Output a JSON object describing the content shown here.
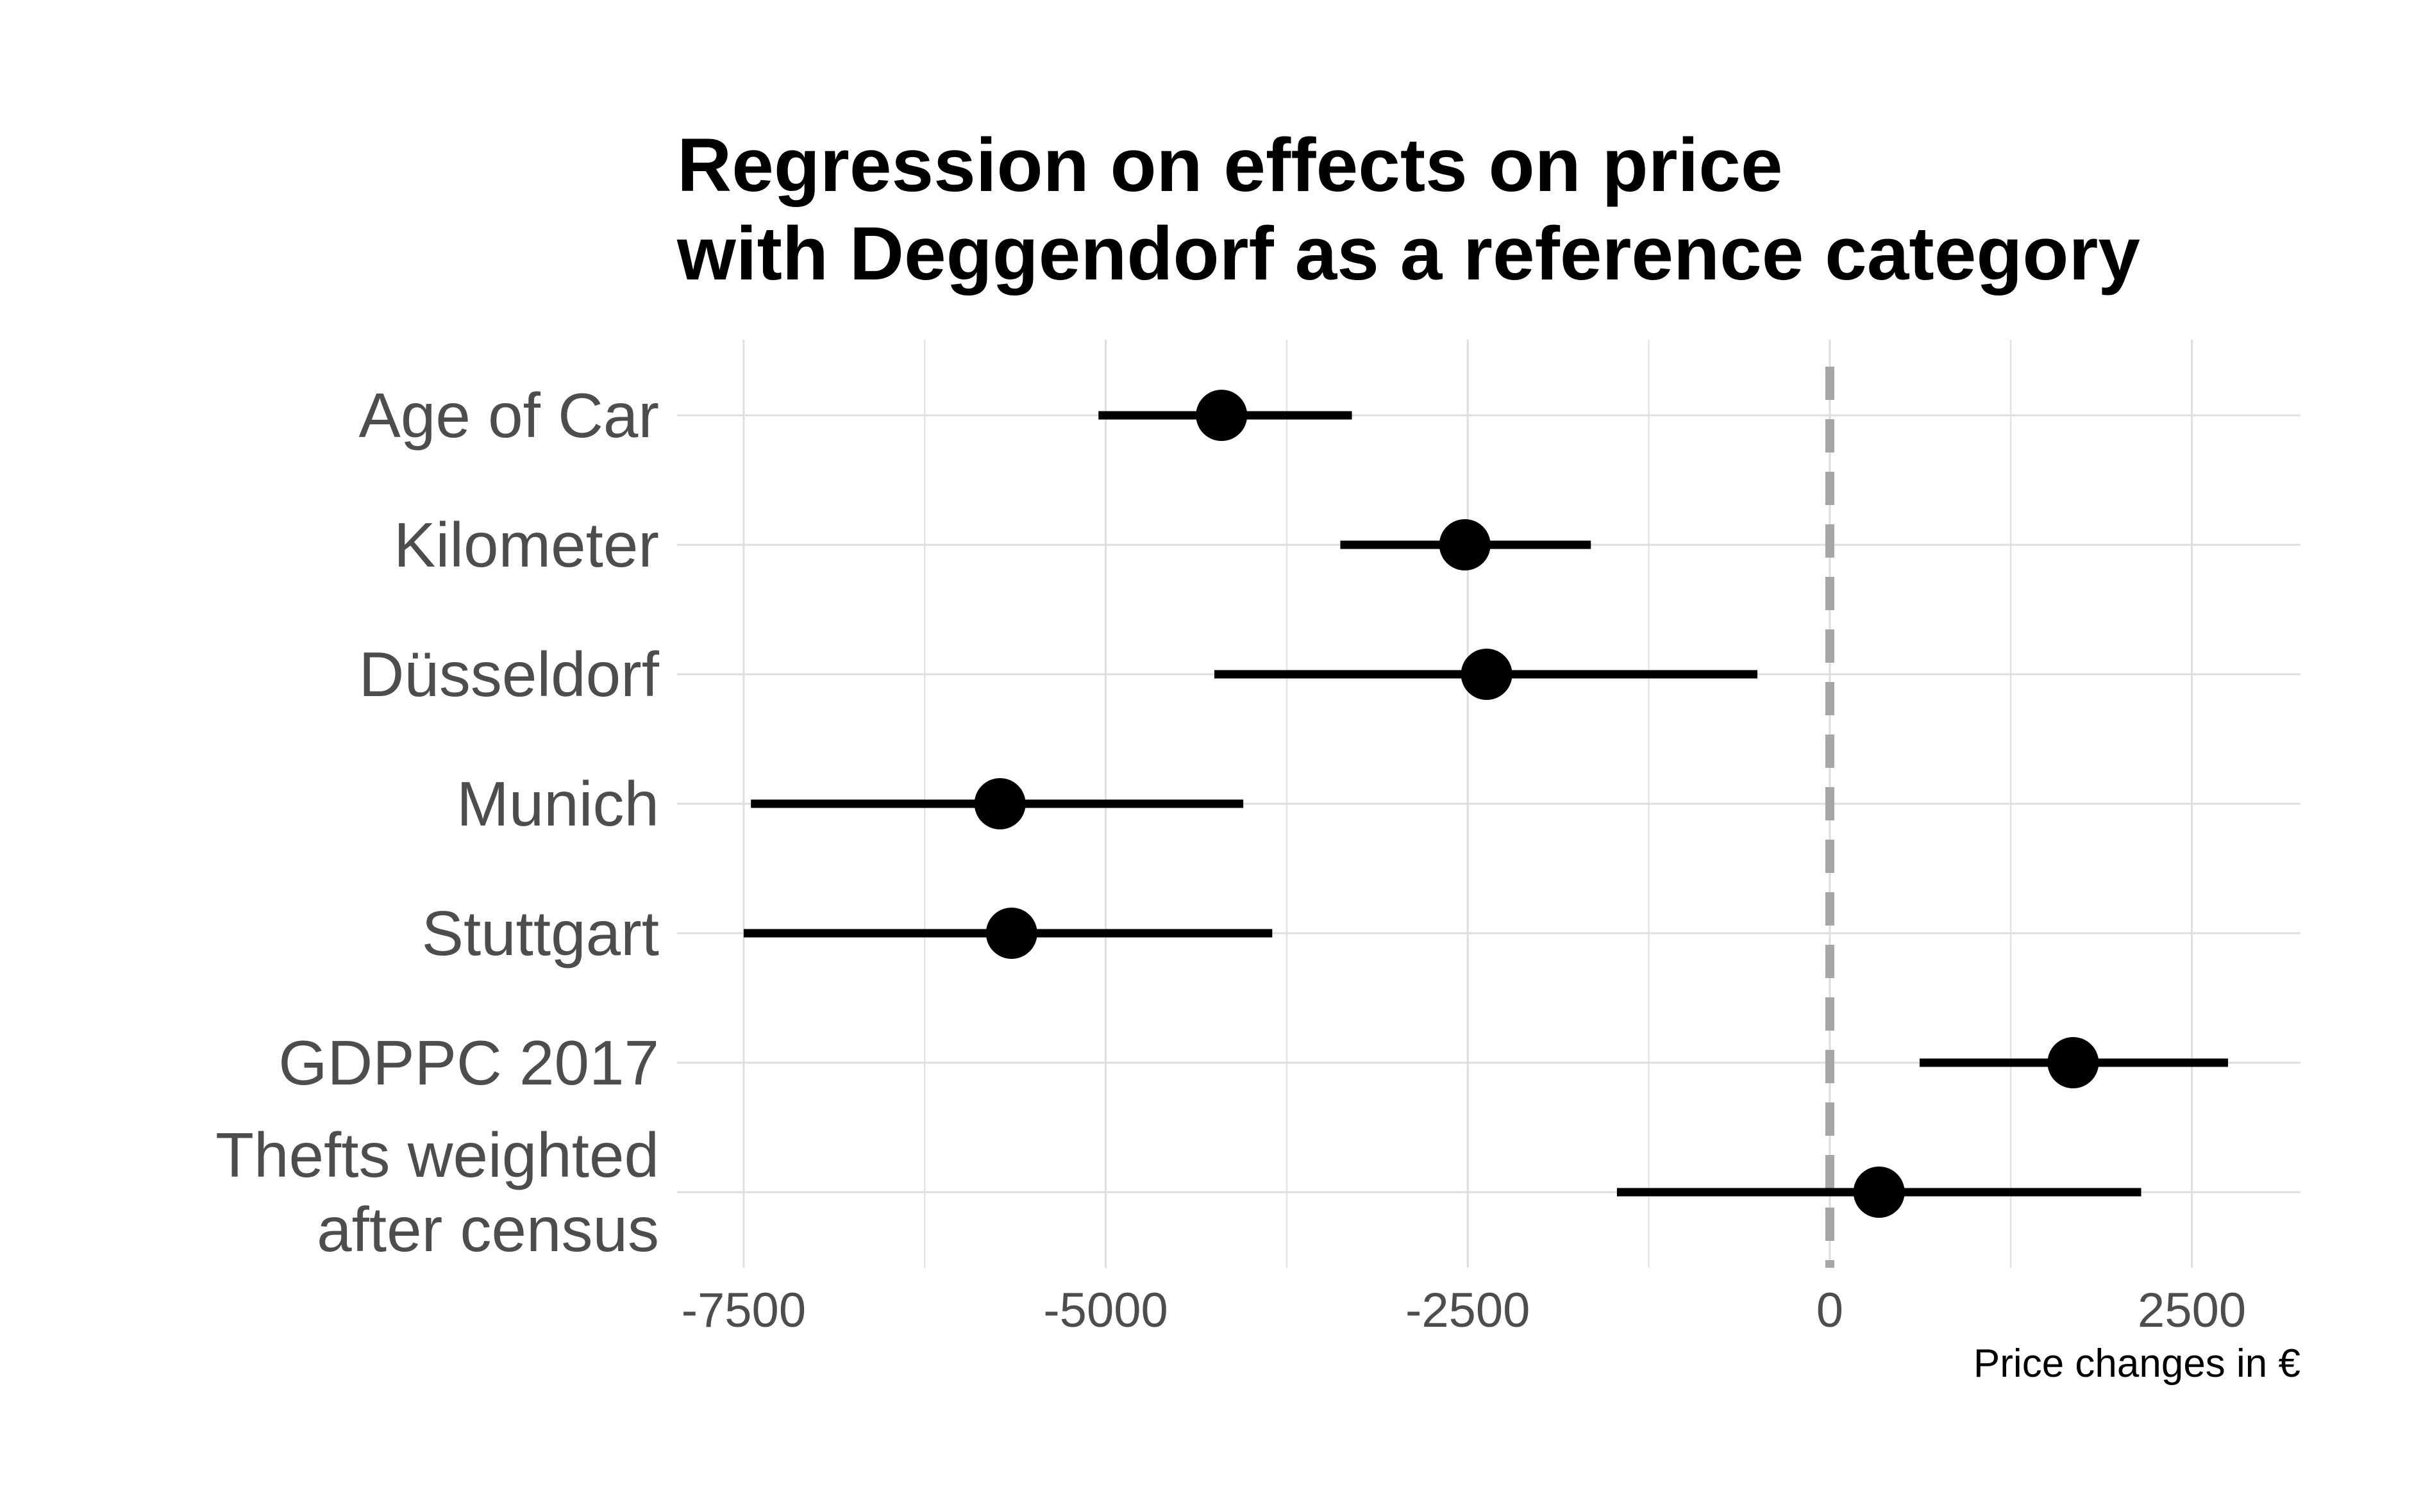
{
  "chart_data": {
    "type": "scatter",
    "title_lines": [
      "Regression on effects on price",
      "with Deggendorf as a reference category"
    ],
    "xlabel": "Price changes in €",
    "ylabel": "",
    "xlim": [
      -7960,
      3250
    ],
    "x_ticks": [
      -7500,
      -5000,
      -2500,
      0,
      2500
    ],
    "x_tick_labels": [
      "-7500",
      "-5000",
      "-2500",
      "0",
      "2500"
    ],
    "reference_line": {
      "x": 0,
      "style": "dashed",
      "color": "#a6a6a6"
    },
    "grid": true,
    "colors": {
      "point": "#000000",
      "grid": "#dedede",
      "label": "#4d4d4d"
    },
    "categories": [
      {
        "label_lines": [
          "Age of Car"
        ],
        "estimate": -4200,
        "lower": -5050,
        "upper": -3300
      },
      {
        "label_lines": [
          "Kilometer"
        ],
        "estimate": -2520,
        "lower": -3380,
        "upper": -1650
      },
      {
        "label_lines": [
          "Düsseldorf"
        ],
        "estimate": -2370,
        "lower": -4250,
        "upper": -500
      },
      {
        "label_lines": [
          "Munich"
        ],
        "estimate": -5730,
        "lower": -7450,
        "upper": -4050
      },
      {
        "label_lines": [
          "Stuttgart"
        ],
        "estimate": -5650,
        "lower": -7500,
        "upper": -3850
      },
      {
        "label_lines": [
          "GDPPC 2017"
        ],
        "estimate": 1680,
        "lower": 620,
        "upper": 2750
      },
      {
        "label_lines": [
          "Thefts weighted",
          "after census"
        ],
        "estimate": 340,
        "lower": -1470,
        "upper": 2150
      }
    ]
  }
}
